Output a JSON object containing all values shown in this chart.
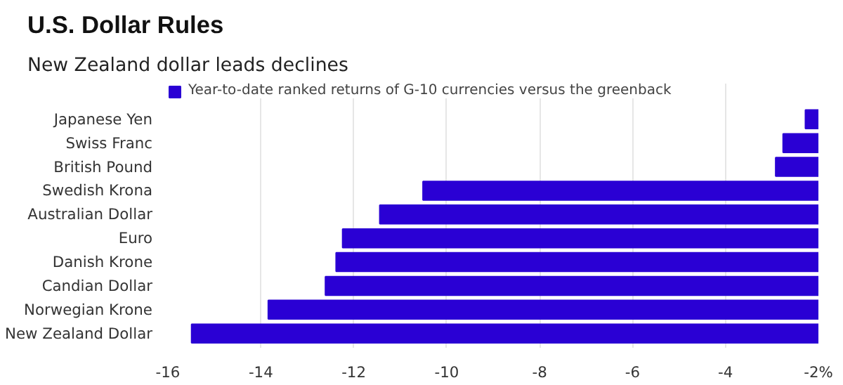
{
  "chart_data": {
    "type": "bar",
    "orientation": "horizontal",
    "title": "U.S. Dollar Rules",
    "subtitle": "New Zealand dollar leads declines",
    "categories": [
      "Japanese Yen",
      "Swiss Franc",
      "British Pound",
      "Swedish Krona",
      "Australian Dollar",
      "Euro",
      "Danish Krone",
      "Candian Dollar",
      "Norwegian Krone",
      "New Zealand Dollar"
    ],
    "series": [
      {
        "name": "Year-to-date ranked returns of G-10 currencies versus the greenback",
        "color": "#2a00d4",
        "values": [
          -2.28,
          -2.76,
          -2.92,
          -10.51,
          -11.44,
          -12.24,
          -12.38,
          -12.61,
          -13.84,
          -15.49
        ]
      }
    ],
    "xlim": [
      -16,
      -2
    ],
    "xticks": [
      -16,
      -14,
      -12,
      -10,
      -8,
      -6,
      -4,
      {
        "value": -2,
        "label": "-2%"
      }
    ],
    "grid": "x",
    "legend": "top left"
  }
}
